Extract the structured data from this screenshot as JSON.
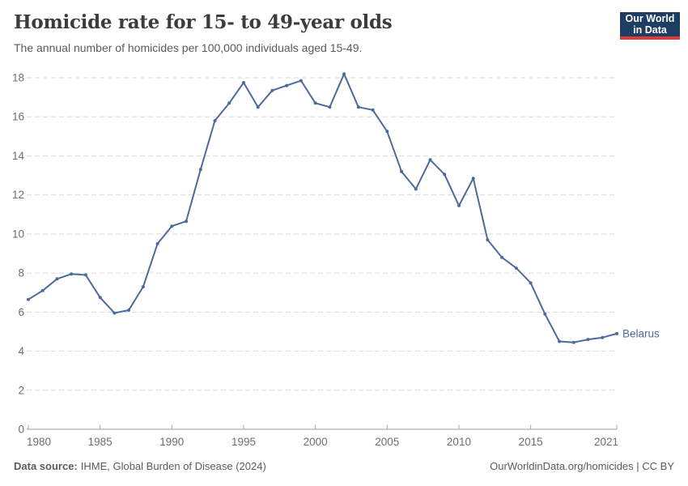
{
  "header": {
    "title": "Homicide rate for 15- to 49-year olds",
    "subtitle": "The annual number of homicides per 100,000 individuals aged 15-49."
  },
  "logo": {
    "line1": "Our World",
    "line2": "in Data",
    "bg_color": "#1d3d63",
    "stripe_color": "#e0393c"
  },
  "chart_data": {
    "type": "line",
    "title": "Homicide rate for 15- to 49-year olds",
    "xlabel": "",
    "ylabel": "",
    "ylim": [
      0,
      18
    ],
    "yticks": [
      0,
      2,
      4,
      6,
      8,
      10,
      12,
      14,
      16,
      18
    ],
    "xticks": [
      1980,
      1985,
      1990,
      1995,
      2000,
      2005,
      2010,
      2015,
      2021
    ],
    "grid": "horizontal-dashed",
    "legend_position": "end-of-line-label",
    "x": [
      1980,
      1981,
      1982,
      1983,
      1984,
      1985,
      1986,
      1987,
      1988,
      1989,
      1990,
      1991,
      1992,
      1993,
      1994,
      1995,
      1996,
      1997,
      1998,
      1999,
      2000,
      2001,
      2002,
      2003,
      2004,
      2005,
      2006,
      2007,
      2008,
      2009,
      2010,
      2011,
      2012,
      2013,
      2014,
      2015,
      2016,
      2017,
      2018,
      2019,
      2020,
      2021
    ],
    "series": [
      {
        "name": "Belarus",
        "color": "#4c6a9c",
        "values": [
          6.65,
          7.1,
          7.7,
          7.95,
          7.9,
          6.75,
          5.95,
          6.1,
          7.3,
          9.5,
          10.4,
          10.65,
          13.3,
          15.8,
          16.7,
          17.75,
          16.5,
          17.35,
          17.6,
          17.85,
          16.7,
          16.5,
          18.2,
          16.5,
          16.35,
          15.25,
          13.2,
          12.3,
          13.8,
          13.05,
          11.45,
          12.85,
          9.7,
          8.8,
          8.25,
          7.5,
          5.9,
          4.5,
          4.45,
          4.6,
          4.7,
          4.9
        ]
      }
    ]
  },
  "footer": {
    "source_label": "Data source:",
    "source_value": "IHME, Global Burden of Disease (2024)",
    "credit": "OurWorldinData.org/homicides | CC BY"
  },
  "colors": {
    "line": "#4c6a9c",
    "grid": "#dadada",
    "axis": "#999999",
    "tick": "#a8a8a8",
    "tick_label": "#6e6e6e",
    "title_text": "#3c3c3c",
    "subtitle_text": "#5b5b5b"
  }
}
